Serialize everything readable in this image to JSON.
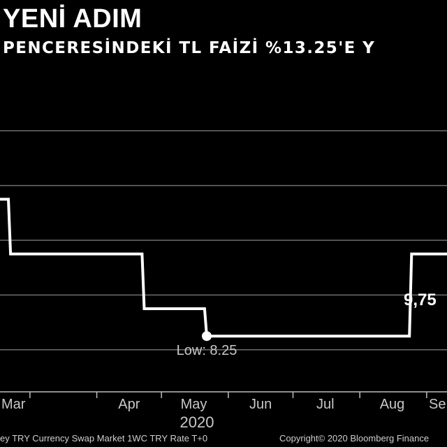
{
  "header": {
    "title": "YENİ ADIM",
    "subtitle": "PENCERESİNDEKİ TL FAİZİ %13.25'E Y"
  },
  "chart_data": {
    "type": "line",
    "title": "YENİ ADIM",
    "subtitle": "PENCERESİNDEKİ TL FAİZİ %13.25'E Y",
    "xlabel": "2020",
    "ylabel": "",
    "x_ticks": [
      "Mar",
      "Apr",
      "May",
      "Jun",
      "Jul",
      "Aug",
      "Se"
    ],
    "ylim": [
      7.5,
      12.5
    ],
    "grid": true,
    "series": [
      {
        "values_by_date": [
          {
            "x": "2020-02-15",
            "y": 10.75
          },
          {
            "x": "2020-02-20",
            "y": 10.75
          },
          {
            "x": "2020-02-21",
            "y": 9.75
          },
          {
            "x": "2020-04-22",
            "y": 9.75
          },
          {
            "x": "2020-04-23",
            "y": 8.75
          },
          {
            "x": "2020-05-21",
            "y": 8.75
          },
          {
            "x": "2020-05-22",
            "y": 8.25
          },
          {
            "x": "2020-08-24",
            "y": 8.25
          },
          {
            "x": "2020-08-25",
            "y": 9.75
          },
          {
            "x": "2020-09-20",
            "y": 9.75
          }
        ]
      }
    ],
    "annotations": {
      "low": {
        "x": "2020-05-22",
        "y": 8.25,
        "label": "Low: 8.25"
      },
      "last": {
        "label": "9,75"
      }
    }
  },
  "footer": {
    "source": "ey TRY Currency Swap Market 1WC TRY Rate T+0",
    "copyright": "Copyright© 2020 Bloomberg Finance"
  }
}
